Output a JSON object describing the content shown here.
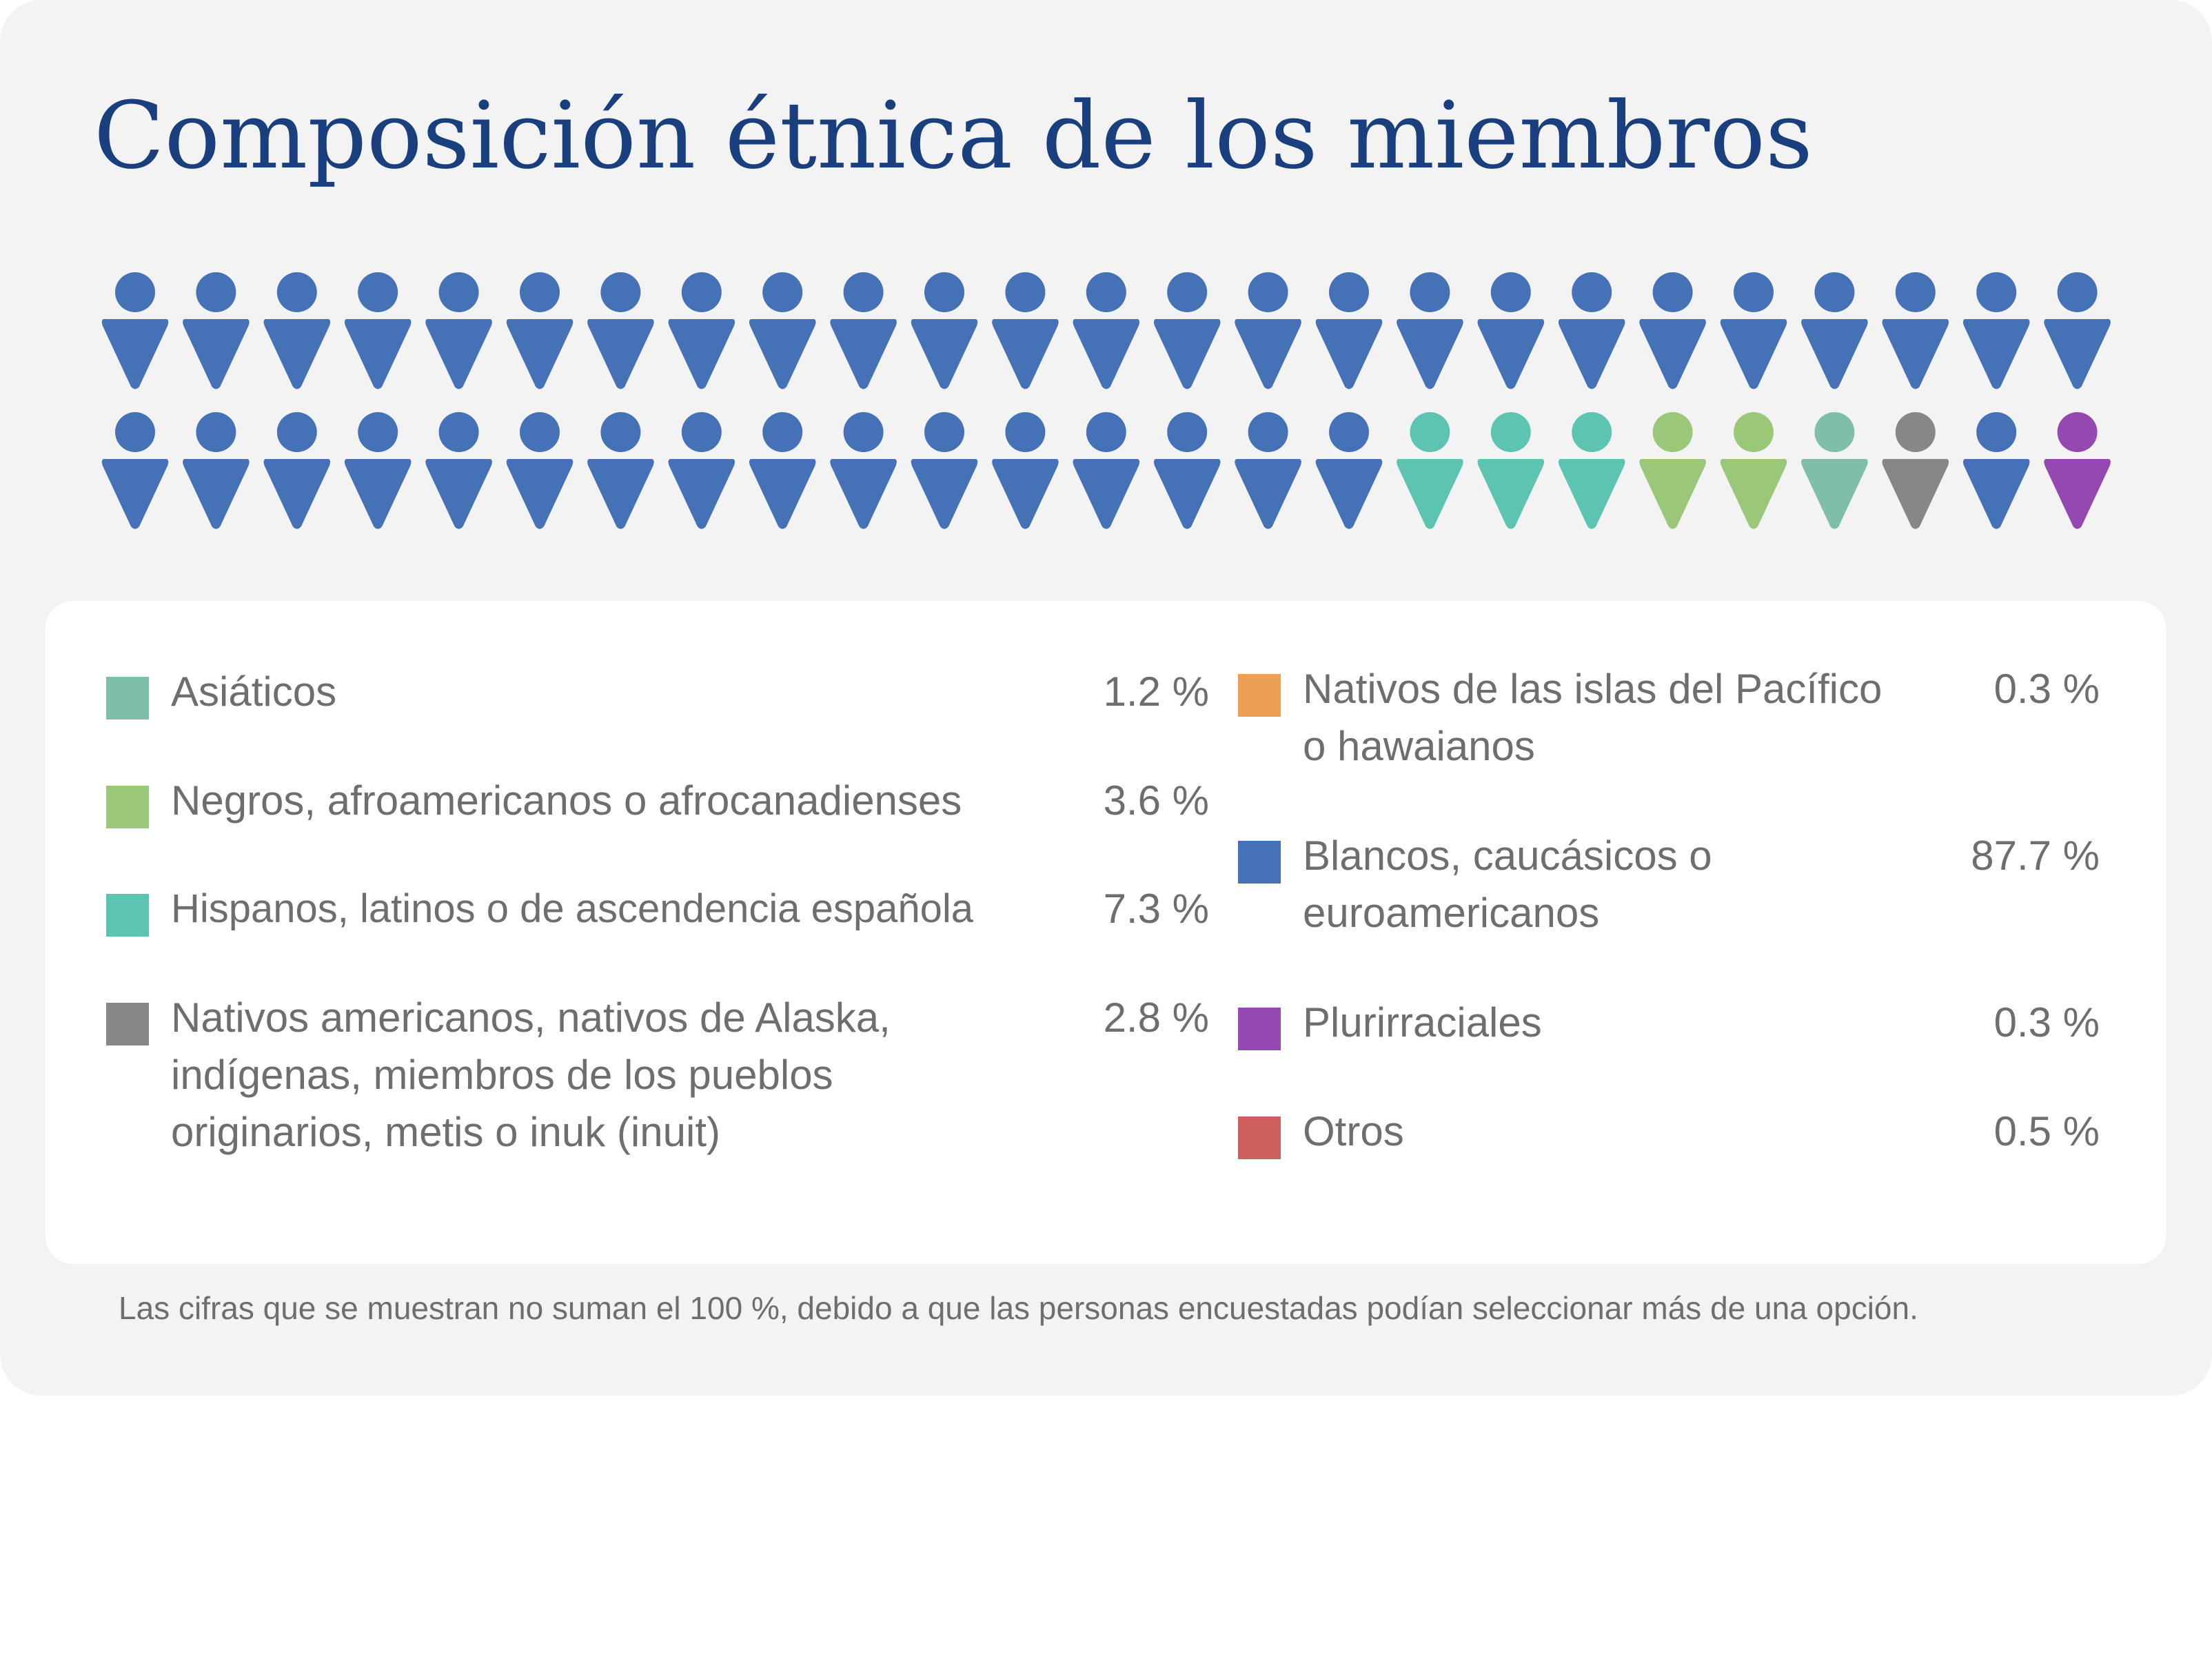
{
  "title": "Composición étnica de los miembros",
  "footnote": "Las cifras que se muestran no suman el 100 %, debido a que las personas encuestadas podían seleccionar más de una opción.",
  "pictogram": {
    "icon": "person-icon",
    "rows": [
      [
        "white",
        "white",
        "white",
        "white",
        "white",
        "white",
        "white",
        "white",
        "white",
        "white",
        "white",
        "white",
        "white",
        "white",
        "white",
        "white",
        "white",
        "white",
        "white",
        "white",
        "white",
        "white",
        "white",
        "white",
        "white"
      ],
      [
        "white",
        "white",
        "white",
        "white",
        "white",
        "white",
        "white",
        "white",
        "white",
        "white",
        "white",
        "white",
        "white",
        "white",
        "white",
        "white",
        "hispanic",
        "hispanic",
        "hispanic",
        "black",
        "black",
        "asian",
        "native",
        "white",
        "multiracial"
      ]
    ]
  },
  "chart_data": {
    "type": "pictogram",
    "title": "Composición étnica de los miembros",
    "unit": "%",
    "categories": [
      {
        "key": "asian",
        "label": "Asiáticos",
        "value": 1.2,
        "display": "1.2 %",
        "color": "#7fbfa8"
      },
      {
        "key": "black",
        "label": "Negros, afroamericanos o afrocanadienses",
        "value": 3.6,
        "display": "3.6 %",
        "color": "#9bc878"
      },
      {
        "key": "hispanic",
        "label": "Hispanos, latinos o de ascendencia española",
        "value": 7.3,
        "display": "7.3 %",
        "color": "#5ec4b2"
      },
      {
        "key": "native",
        "label": "Nativos americanos, nativos de Alaska, indígenas, miembros de los pueblos originarios, metis o inuk (inuit)",
        "lines": [
          "Nativos americanos, nativos de Alaska,",
          "indígenas, miembros de los pueblos",
          "originarios, metis o inuk (inuit)"
        ],
        "value": 2.8,
        "display": "2.8 %",
        "color": "#878787"
      },
      {
        "key": "pacific",
        "label": "Nativos de las islas del Pacífico o hawaianos",
        "lines": [
          "Nativos de las islas del Pacífico",
          "o hawaianos"
        ],
        "value": 0.3,
        "display": "0.3 %",
        "color": "#ec9f55"
      },
      {
        "key": "white",
        "label": "Blancos, caucásicos o euroamericanos",
        "lines": [
          "Blancos, caucásicos o",
          "euroamericanos"
        ],
        "value": 87.7,
        "display": "87.7 %",
        "color": "#4571b6"
      },
      {
        "key": "multiracial",
        "label": "Plurirraciales",
        "value": 0.3,
        "display": "0.3 %",
        "color": "#9448b0"
      },
      {
        "key": "other",
        "label": "Otros",
        "value": 0.5,
        "display": "0.5 %",
        "color": "#cf6060"
      }
    ]
  }
}
